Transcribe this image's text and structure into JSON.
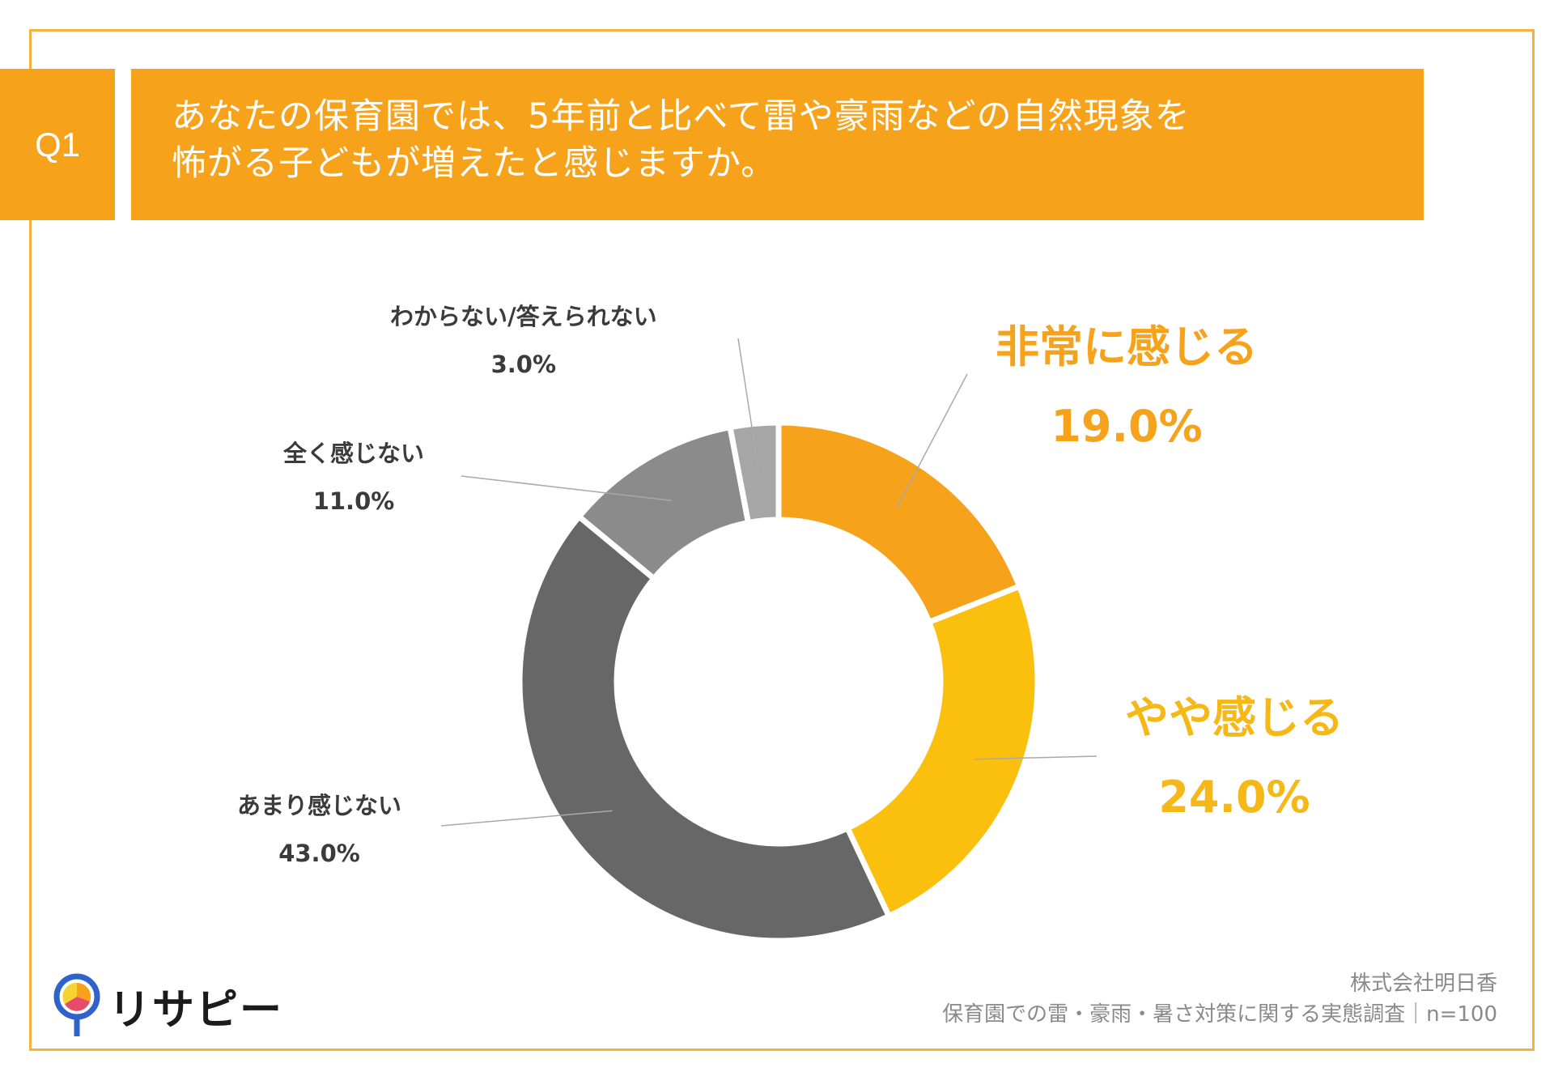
{
  "question": {
    "badge": "Q1",
    "line1": "あなたの保育園では、5年前と比べて雷や豪雨などの自然現象を",
    "line2": "怖がる子どもが増えたと感じますか。"
  },
  "chart_data": {
    "type": "pie",
    "donut": true,
    "title": "あなたの保育園では、5年前と比べて雷や豪雨などの自然現象を怖がる子どもが増えたと感じますか。",
    "start": "top, clockwise",
    "slices": [
      {
        "label": "非常に感じる",
        "value": 19.0,
        "value_label": "19.0%",
        "color": "#f7a21b"
      },
      {
        "label": "やや感じる",
        "value": 24.0,
        "value_label": "24.0%",
        "color": "#fbbf0d"
      },
      {
        "label": "あまり感じない",
        "value": 43.0,
        "value_label": "43.0%",
        "color": "#676767"
      },
      {
        "label": "全く感じない",
        "value": 11.0,
        "value_label": "11.0%",
        "color": "#8b8b8b"
      },
      {
        "label": "わからない/答えられない",
        "value": 3.0,
        "value_label": "3.0%",
        "color": "#a6a6a6"
      }
    ]
  },
  "logo": {
    "text": "リサピー",
    "icon": "map-pin-pie-icon"
  },
  "source": {
    "company": "株式会社明日香",
    "survey": "保育園での雷・豪雨・暑さ対策に関する実態調査｜n=100"
  },
  "colors": {
    "accent": "#f7a21b",
    "frame": "#f3b33d"
  }
}
